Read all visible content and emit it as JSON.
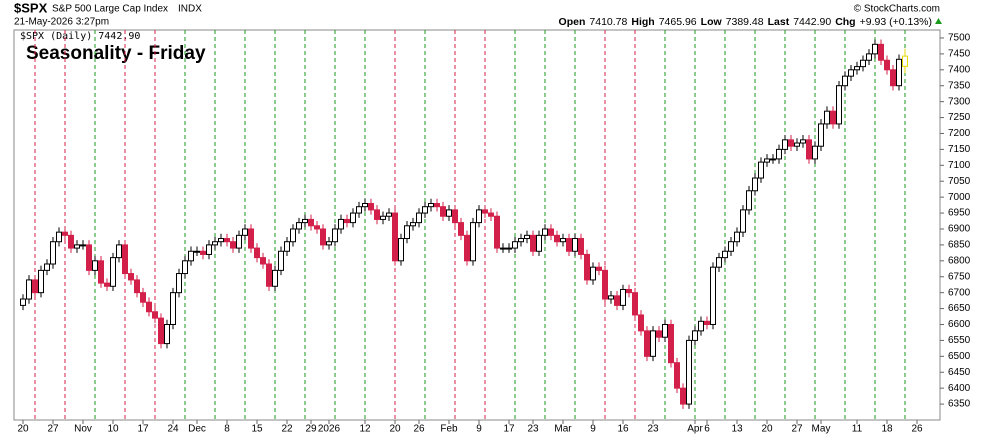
{
  "header": {
    "symbol": "$SPX",
    "name": "S&P 500 Large Cap Index",
    "exchange": "INDX",
    "timestamp": "21-May-2026 3:27pm",
    "open_label": "Open",
    "open": "7410.78",
    "high_label": "High",
    "high": "7465.96",
    "low_label": "Low",
    "low": "7389.48",
    "last_label": "Last",
    "last": "7442.90",
    "chg_label": "Chg",
    "chg": "+9.93 (+0.13%)",
    "copyright": "© StockCharts.com",
    "legend": "$SPX (Daily) 7442.90"
  },
  "chart_data": {
    "type": "candlestick",
    "title": "Seasonality - Friday",
    "categories": [
      "20",
      null,
      null,
      null,
      null,
      "27",
      null,
      null,
      null,
      null,
      "Nov",
      null,
      null,
      null,
      null,
      "10",
      null,
      null,
      null,
      null,
      "17",
      null,
      null,
      null,
      null,
      "24",
      null,
      null,
      null,
      "Dec",
      null,
      null,
      null,
      null,
      "8",
      null,
      null,
      null,
      null,
      "15",
      null,
      null,
      null,
      null,
      "22",
      null,
      null,
      null,
      "29",
      null,
      null,
      "2026",
      null,
      null,
      null,
      null,
      null,
      "12",
      null,
      null,
      null,
      null,
      "20",
      null,
      null,
      null,
      "26",
      null,
      null,
      null,
      null,
      "Feb",
      null,
      null,
      null,
      null,
      "9",
      null,
      null,
      null,
      null,
      "17",
      null,
      null,
      null,
      "23",
      null,
      null,
      null,
      null,
      "Mar",
      null,
      null,
      null,
      null,
      "9",
      null,
      null,
      null,
      null,
      "16",
      null,
      null,
      null,
      null,
      "23",
      null,
      null,
      null,
      null,
      null,
      null,
      "Apr",
      null,
      "6",
      null,
      null,
      null,
      null,
      "13",
      null,
      null,
      null,
      null,
      "20",
      null,
      null,
      null,
      null,
      "27",
      null,
      null,
      null,
      "May",
      null,
      null,
      null,
      null,
      null,
      "11",
      null,
      null,
      null,
      null,
      "18",
      null,
      null,
      null
    ],
    "future_categories": [
      null,
      "26"
    ],
    "open": [
      6660,
      6680,
      6740,
      6700,
      6770,
      6790,
      6860,
      6890,
      6880,
      6840,
      6850,
      6850,
      6770,
      6800,
      6730,
      6720,
      6810,
      6850,
      6760,
      6740,
      6700,
      6670,
      6640,
      6620,
      6540,
      6600,
      6700,
      6760,
      6800,
      6830,
      6830,
      6820,
      6850,
      6860,
      6870,
      6860,
      6840,
      6880,
      6900,
      6840,
      6810,
      6790,
      6720,
      6770,
      6830,
      6860,
      6900,
      6920,
      6930,
      6910,
      6900,
      6850,
      6860,
      6900,
      6930,
      6920,
      6950,
      6970,
      6980,
      6960,
      6930,
      6940,
      6950,
      6800,
      6870,
      6910,
      6920,
      6950,
      6970,
      6980,
      6970,
      6940,
      6960,
      6920,
      6880,
      6800,
      6920,
      6960,
      6950,
      6940,
      6840,
      6840,
      6840,
      6860,
      6870,
      6880,
      6830,
      6880,
      6900,
      6880,
      6860,
      6870,
      6830,
      6870,
      6820,
      6740,
      6780,
      6770,
      6680,
      6690,
      6660,
      6710,
      6700,
      6630,
      6580,
      6500,
      6580,
      6560,
      6600,
      6480,
      6400,
      6350,
      6550,
      6580,
      6610,
      6600,
      6780,
      6810,
      6830,
      6860,
      6890,
      6960,
      7020,
      7060,
      7110,
      7120,
      7120,
      7150,
      7180,
      7160,
      7170,
      7180,
      7120,
      7160,
      7230,
      7270,
      7230,
      7350,
      7380,
      7400,
      7410,
      7430,
      7450,
      7480,
      7430,
      7400,
      7350,
      7410.78
    ],
    "high": [
      6695,
      6755,
      6755,
      6785,
      6805,
      6875,
      6905,
      6905,
      6895,
      6865,
      6865,
      6865,
      6815,
      6815,
      6745,
      6825,
      6865,
      6865,
      6775,
      6755,
      6715,
      6685,
      6655,
      6635,
      6615,
      6715,
      6775,
      6815,
      6845,
      6845,
      6845,
      6865,
      6875,
      6885,
      6885,
      6875,
      6895,
      6915,
      6915,
      6855,
      6825,
      6805,
      6785,
      6845,
      6875,
      6915,
      6935,
      6945,
      6945,
      6925,
      6915,
      6875,
      6915,
      6945,
      6945,
      6965,
      6985,
      6995,
      6995,
      6975,
      6955,
      6965,
      6965,
      6885,
      6925,
      6935,
      6965,
      6985,
      6995,
      6995,
      6985,
      6975,
      6975,
      6935,
      6895,
      6935,
      6975,
      6975,
      6965,
      6955,
      6855,
      6855,
      6875,
      6885,
      6895,
      6895,
      6895,
      6915,
      6915,
      6895,
      6885,
      6885,
      6885,
      6885,
      6835,
      6795,
      6795,
      6785,
      6705,
      6705,
      6725,
      6725,
      6715,
      6645,
      6595,
      6595,
      6595,
      6615,
      6615,
      6495,
      6415,
      6565,
      6595,
      6625,
      6625,
      6795,
      6825,
      6845,
      6875,
      6905,
      6975,
      7035,
      7075,
      7125,
      7135,
      7135,
      7165,
      7195,
      7195,
      7185,
      7195,
      7195,
      7175,
      7245,
      7285,
      7285,
      7365,
      7395,
      7415,
      7425,
      7445,
      7465,
      7495,
      7495,
      7445,
      7415,
      7448,
      7465.96
    ],
    "low": [
      6645,
      6665,
      6685,
      6685,
      6755,
      6775,
      6845,
      6865,
      6825,
      6825,
      6835,
      6755,
      6755,
      6715,
      6705,
      6705,
      6795,
      6745,
      6725,
      6685,
      6655,
      6625,
      6605,
      6525,
      6525,
      6585,
      6685,
      6745,
      6785,
      6815,
      6805,
      6805,
      6835,
      6845,
      6845,
      6825,
      6825,
      6865,
      6825,
      6795,
      6775,
      6705,
      6705,
      6755,
      6815,
      6845,
      6885,
      6905,
      6895,
      6885,
      6835,
      6835,
      6845,
      6885,
      6905,
      6905,
      6935,
      6955,
      6945,
      6915,
      6915,
      6925,
      6785,
      6785,
      6855,
      6895,
      6905,
      6935,
      6955,
      6955,
      6925,
      6925,
      6905,
      6865,
      6785,
      6785,
      6905,
      6935,
      6925,
      6825,
      6825,
      6825,
      6825,
      6845,
      6855,
      6815,
      6815,
      6865,
      6865,
      6845,
      6845,
      6815,
      6815,
      6805,
      6725,
      6725,
      6755,
      6665,
      6665,
      6645,
      6645,
      6685,
      6615,
      6565,
      6485,
      6485,
      6545,
      6545,
      6465,
      6385,
      6335,
      6335,
      6535,
      6565,
      6585,
      6585,
      6765,
      6795,
      6815,
      6845,
      6875,
      6945,
      7005,
      7045,
      7095,
      7105,
      7105,
      7135,
      7145,
      7145,
      7155,
      7105,
      7105,
      7145,
      7215,
      7215,
      7215,
      7335,
      7365,
      7385,
      7395,
      7415,
      7435,
      7415,
      7385,
      7335,
      7335,
      7389.48
    ],
    "close": [
      6680,
      6740,
      6700,
      6770,
      6790,
      6860,
      6890,
      6880,
      6840,
      6850,
      6850,
      6770,
      6800,
      6730,
      6720,
      6810,
      6850,
      6760,
      6740,
      6700,
      6670,
      6640,
      6620,
      6540,
      6600,
      6700,
      6760,
      6800,
      6830,
      6830,
      6820,
      6850,
      6860,
      6870,
      6860,
      6840,
      6880,
      6900,
      6840,
      6810,
      6790,
      6720,
      6770,
      6830,
      6860,
      6900,
      6920,
      6930,
      6910,
      6900,
      6850,
      6860,
      6900,
      6930,
      6920,
      6950,
      6970,
      6980,
      6960,
      6930,
      6940,
      6950,
      6800,
      6870,
      6910,
      6920,
      6950,
      6970,
      6980,
      6970,
      6940,
      6960,
      6920,
      6880,
      6800,
      6920,
      6960,
      6950,
      6940,
      6840,
      6840,
      6840,
      6860,
      6870,
      6880,
      6830,
      6880,
      6900,
      6880,
      6860,
      6870,
      6830,
      6870,
      6820,
      6740,
      6780,
      6770,
      6680,
      6690,
      6660,
      6710,
      6700,
      6630,
      6580,
      6500,
      6580,
      6560,
      6600,
      6480,
      6400,
      6350,
      6550,
      6580,
      6610,
      6600,
      6780,
      6810,
      6830,
      6860,
      6890,
      6960,
      7020,
      7060,
      7110,
      7120,
      7120,
      7150,
      7180,
      7160,
      7170,
      7180,
      7120,
      7160,
      7230,
      7270,
      7230,
      7350,
      7380,
      7400,
      7410,
      7430,
      7450,
      7480,
      7430,
      7400,
      7350,
      7432.97,
      7442.9
    ],
    "ylim": [
      6300,
      7525
    ],
    "yticks": [
      6350,
      6400,
      6450,
      6500,
      6550,
      6600,
      6650,
      6700,
      6750,
      6800,
      6850,
      6900,
      6950,
      7000,
      7050,
      7100,
      7150,
      7200,
      7250,
      7300,
      7350,
      7400,
      7450,
      7500
    ],
    "up_color": "#000000",
    "down_color": "#d3204a",
    "last_color": "#e6d800",
    "friday_up_color": "#1a9a1a",
    "friday_down_color": "#d3204a",
    "title_color": "#1a1adc"
  }
}
